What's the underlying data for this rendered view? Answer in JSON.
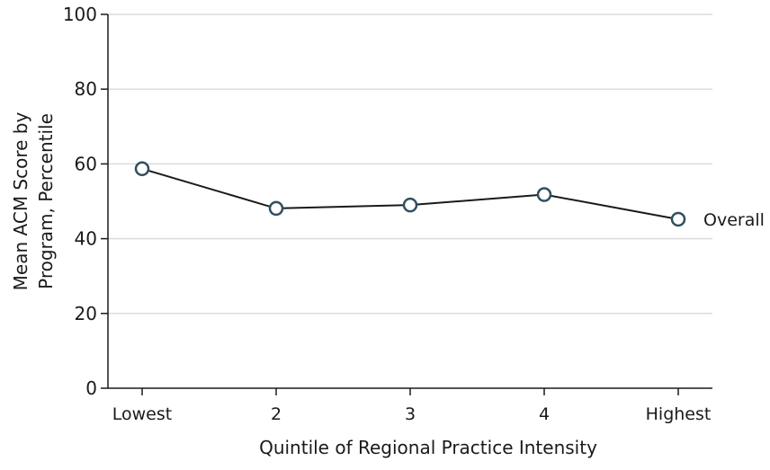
{
  "chart_data": {
    "type": "line",
    "title": "",
    "xlabel": "Quintile of Regional Practice Intensity",
    "ylabel": [
      "Mean ACM Score by",
      "Program, Percentile"
    ],
    "categories": [
      "Lowest",
      "2",
      "3",
      "4",
      "Highest"
    ],
    "ylim": [
      0,
      100
    ],
    "yticks": [
      0,
      20,
      40,
      60,
      80,
      100
    ],
    "grid": true,
    "series": [
      {
        "name": "Overall",
        "values": [
          58.7,
          48.1,
          49.0,
          51.8,
          45.2
        ]
      }
    ],
    "colors": {
      "line": "#1a1a1a",
      "marker_stroke": "#2f4f5f",
      "marker_fill": "#ffffff",
      "grid": "#dcdcdc",
      "axis": "#1a1a1a"
    }
  }
}
